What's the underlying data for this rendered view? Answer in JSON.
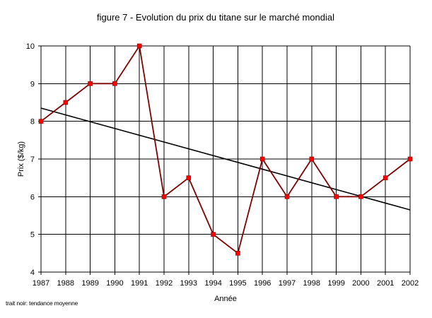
{
  "chart_data": {
    "type": "line",
    "title": "figure 7 - Evolution du prix du titane sur le marché mondial",
    "xlabel": "Année",
    "ylabel": "Prix ($/kg)",
    "note": "trait noir: tendance moyenne",
    "x": [
      1987,
      1988,
      1989,
      1990,
      1991,
      1992,
      1993,
      1994,
      1995,
      1996,
      1997,
      1998,
      1999,
      2000,
      2001,
      2002
    ],
    "xlim": [
      1987,
      2002
    ],
    "ylim": [
      4,
      10
    ],
    "yticks": [
      4,
      5,
      6,
      7,
      8,
      9,
      10
    ],
    "grid": true,
    "series": [
      {
        "values": [
          8,
          8.5,
          9,
          9,
          10,
          6,
          6.5,
          5,
          4.5,
          7,
          6,
          7,
          6,
          6,
          6.5,
          7
        ],
        "line_color": "#800000",
        "marker_color": "#ff0000"
      },
      {
        "kind": "trend",
        "x": [
          1987,
          2002
        ],
        "values": [
          8.35,
          5.65
        ],
        "line_color": "#000000"
      }
    ]
  }
}
